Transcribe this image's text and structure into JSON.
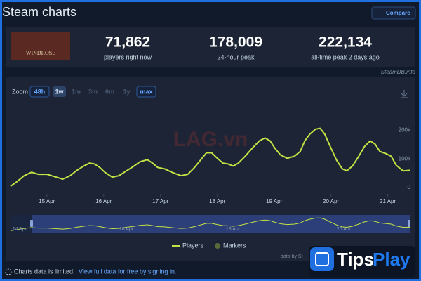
{
  "header": {
    "title": "Steam charts",
    "compare": "Compare"
  },
  "game_image_text": "WINDROSE",
  "stats": [
    {
      "value": "71,862",
      "label": "players right now"
    },
    {
      "value": "178,009",
      "label": "24-hour peak"
    },
    {
      "value": "222,134",
      "label": "all-time peak 2 days ago"
    }
  ],
  "source": "SteamDB.info",
  "zoom": {
    "label": "Zoom",
    "options": [
      "48h",
      "1w",
      "1m",
      "3m",
      "6m",
      "1y",
      "max"
    ]
  },
  "chart_data": {
    "type": "line",
    "x": [
      14.36,
      14.48,
      14.6,
      14.73,
      14.85,
      15,
      15.16,
      15.28,
      15.41,
      15.53,
      15.65,
      15.75,
      15.84,
      15.93,
      16.02,
      16.15,
      16.27,
      16.4,
      16.52,
      16.64,
      16.77,
      16.86,
      16.95,
      17.07,
      17.2,
      17.36,
      17.48,
      17.6,
      17.73,
      17.81,
      17.9,
      18,
      18.1,
      18.19,
      18.28,
      18.37,
      18.49,
      18.62,
      18.74,
      18.84,
      18.93,
      19.01,
      19.11,
      19.23,
      19.36,
      19.46,
      19.54,
      19.63,
      19.73,
      19.81,
      19.89,
      20,
      20.1,
      20.2,
      20.28,
      20.38,
      20.49,
      20.59,
      20.69,
      20.78,
      20.86,
      20.96,
      21.06,
      21.15,
      21.27,
      21.4
    ],
    "series": [
      {
        "name": "Players",
        "color": "#c5e244",
        "values": [
          7000,
          24000,
          44000,
          56000,
          49000,
          49000,
          39000,
          32000,
          44000,
          63000,
          78000,
          88000,
          85000,
          73000,
          56000,
          39000,
          44000,
          61000,
          76000,
          93000,
          100000,
          88000,
          73000,
          68000,
          56000,
          44000,
          49000,
          73000,
          105000,
          124000,
          124000,
          105000,
          88000,
          85000,
          78000,
          88000,
          112000,
          141000,
          166000,
          176000,
          166000,
          141000,
          117000,
          105000,
          112000,
          129000,
          166000,
          190000,
          207000,
          210000,
          190000,
          141000,
          98000,
          68000,
          61000,
          78000,
          112000,
          146000,
          166000,
          154000,
          129000,
          122000,
          112000,
          80000,
          61000,
          63000
        ]
      }
    ],
    "markers_label": "Markers",
    "xlim": [
      14.36,
      21.4
    ],
    "ylim": [
      0,
      290000
    ],
    "xticks": [
      {
        "value": 15,
        "label": "15 Apr"
      },
      {
        "value": 16,
        "label": "16 Apr"
      },
      {
        "value": 17,
        "label": "17 Apr"
      },
      {
        "value": 18,
        "label": "18 Apr"
      },
      {
        "value": 19,
        "label": "19 Apr"
      },
      {
        "value": 20,
        "label": "20 Apr"
      },
      {
        "value": 21,
        "label": "21 Apr"
      }
    ],
    "yticks": [
      0,
      {
        "value": 100000,
        "label": "100k"
      },
      {
        "value": 200000,
        "label": "200k"
      }
    ]
  },
  "navigator": {
    "labels": [
      "14 Apr",
      "16 Apr",
      "18 Apr",
      "20 Apr"
    ]
  },
  "credit": "data by St",
  "footer": {
    "notice": "Charts data is limited.",
    "link": "View full data for free by signing in."
  },
  "overlay": {
    "watermark": "LAG.vn",
    "brand_a": "Tips",
    "brand_b": "Play"
  }
}
